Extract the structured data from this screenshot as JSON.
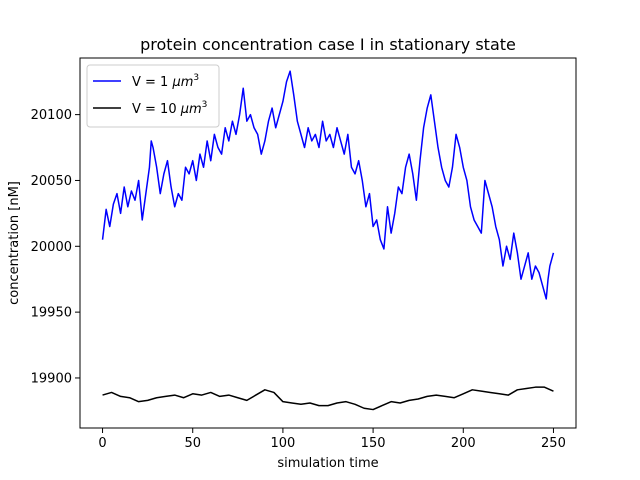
{
  "chart_data": {
    "type": "line",
    "title": "protein concentration case I in stationary state",
    "xlabel": "simulation time",
    "ylabel": "concentration [nM]",
    "xlim": [
      -12.5,
      262.5
    ],
    "ylim": [
      19862,
      20143
    ],
    "xticks": [
      0,
      50,
      100,
      150,
      200,
      250
    ],
    "xtick_labels": [
      "0",
      "50",
      "100",
      "150",
      "200",
      "250"
    ],
    "yticks": [
      19900,
      19950,
      20000,
      20050,
      20100
    ],
    "ytick_labels": [
      "19900",
      "19950",
      "20000",
      "20050",
      "20100"
    ],
    "grid": false,
    "legend": "top-left",
    "series": [
      {
        "name_prefix": "V = 1 ",
        "name_unit": "μm",
        "name_exp": "3",
        "color": "#0000ff",
        "x": [
          0,
          2,
          4,
          6,
          8,
          10,
          12,
          14,
          16,
          18,
          20,
          22,
          24,
          26,
          27,
          28,
          30,
          32,
          34,
          36,
          38,
          40,
          42,
          44,
          46,
          48,
          50,
          52,
          54,
          56,
          58,
          60,
          62,
          64,
          66,
          68,
          70,
          72,
          74,
          76,
          78,
          80,
          82,
          84,
          86,
          88,
          90,
          92,
          94,
          96,
          98,
          100,
          102,
          104,
          106,
          108,
          110,
          112,
          114,
          116,
          118,
          120,
          122,
          124,
          126,
          128,
          130,
          132,
          134,
          136,
          138,
          140,
          142,
          144,
          146,
          148,
          150,
          152,
          154,
          156,
          158,
          160,
          162,
          164,
          166,
          168,
          170,
          172,
          174,
          176,
          178,
          180,
          182,
          184,
          186,
          188,
          190,
          192,
          194,
          196,
          198,
          200,
          202,
          204,
          206,
          208,
          210,
          212,
          214,
          216,
          218,
          220,
          222,
          224,
          226,
          228,
          230,
          232,
          234,
          236,
          238,
          240,
          242,
          244,
          246,
          247,
          248,
          250
        ],
        "y": [
          20005,
          20028,
          20015,
          20032,
          20040,
          20025,
          20045,
          20030,
          20042,
          20035,
          20050,
          20020,
          20040,
          20060,
          20080,
          20075,
          20060,
          20040,
          20055,
          20065,
          20045,
          20030,
          20040,
          20035,
          20060,
          20055,
          20065,
          20050,
          20070,
          20060,
          20080,
          20065,
          20085,
          20075,
          20070,
          20090,
          20080,
          20095,
          20085,
          20100,
          20120,
          20095,
          20100,
          20090,
          20085,
          20070,
          20080,
          20095,
          20105,
          20090,
          20100,
          20110,
          20125,
          20133,
          20115,
          20095,
          20085,
          20075,
          20090,
          20080,
          20085,
          20075,
          20095,
          20080,
          20085,
          20075,
          20090,
          20080,
          20070,
          20085,
          20060,
          20055,
          20065,
          20050,
          20030,
          20040,
          20015,
          20020,
          20005,
          19998,
          20030,
          20010,
          20025,
          20045,
          20040,
          20060,
          20070,
          20055,
          20035,
          20065,
          20090,
          20105,
          20115,
          20095,
          20075,
          20060,
          20050,
          20045,
          20060,
          20085,
          20075,
          20060,
          20050,
          20030,
          20020,
          20015,
          20010,
          20050,
          20040,
          20030,
          20015,
          20005,
          19985,
          20000,
          19990,
          20010,
          19995,
          19975,
          19985,
          19995,
          19975,
          19985,
          19980,
          19970,
          19960,
          19975,
          19985,
          19995
        ]
      },
      {
        "name_prefix": "V = 10 ",
        "name_unit": "μm",
        "name_exp": "3",
        "color": "#000000",
        "x": [
          0,
          5,
          10,
          15,
          20,
          25,
          30,
          35,
          40,
          45,
          50,
          55,
          60,
          65,
          70,
          75,
          80,
          85,
          90,
          95,
          100,
          105,
          110,
          115,
          120,
          125,
          130,
          135,
          140,
          145,
          150,
          155,
          160,
          165,
          170,
          175,
          180,
          185,
          190,
          195,
          200,
          205,
          210,
          215,
          220,
          225,
          230,
          235,
          240,
          245,
          250
        ],
        "y": [
          19887,
          19889,
          19886,
          19885,
          19882,
          19883,
          19885,
          19886,
          19887,
          19885,
          19888,
          19887,
          19889,
          19886,
          19887,
          19885,
          19883,
          19887,
          19891,
          19889,
          19882,
          19881,
          19880,
          19881,
          19879,
          19879,
          19881,
          19882,
          19880,
          19877,
          19876,
          19879,
          19882,
          19881,
          19883,
          19884,
          19886,
          19887,
          19886,
          19885,
          19888,
          19891,
          19890,
          19889,
          19888,
          19887,
          19891,
          19892,
          19893,
          19893,
          19890
        ]
      }
    ]
  }
}
